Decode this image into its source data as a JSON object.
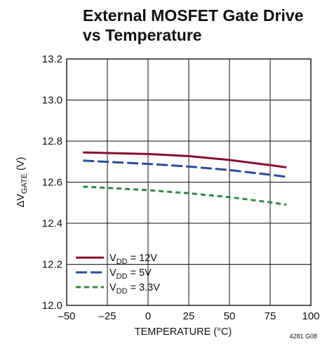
{
  "chart_data": {
    "type": "line",
    "title": [
      "External MOSFET Gate Drive",
      "vs Temperature"
    ],
    "xlabel": "TEMPERATURE (°C)",
    "ylabel": {
      "prefix": "ΔV",
      "sub": "GATE",
      "suffix": " (V)"
    },
    "xlim": [
      -50,
      100
    ],
    "ylim": [
      12.0,
      13.2
    ],
    "xticks": [
      -50,
      -25,
      0,
      25,
      50,
      75,
      100
    ],
    "xtick_labels": [
      "–50",
      "–25",
      "0",
      "25",
      "50",
      "75",
      "100"
    ],
    "yticks": [
      12.0,
      12.2,
      12.4,
      12.6,
      12.8,
      13.0,
      13.2
    ],
    "ytick_labels": [
      "12.0",
      "12.2",
      "12.4",
      "12.6",
      "12.8",
      "13.0",
      "13.2"
    ],
    "grid": true,
    "legend_position": "bottom-left",
    "series": [
      {
        "legend_main": "V",
        "legend_sub": "DD",
        "legend_rest": " = 12V",
        "color": "#8b0d2e",
        "dash": "solid",
        "x": [
          -40,
          -25,
          0,
          25,
          50,
          75,
          85
        ],
        "y": [
          12.745,
          12.742,
          12.737,
          12.727,
          12.708,
          12.683,
          12.672
        ]
      },
      {
        "legend_main": "V",
        "legend_sub": "DD",
        "legend_rest": " = 5V",
        "color": "#2b4b9b",
        "dash": "long",
        "x": [
          -40,
          -25,
          0,
          25,
          50,
          75,
          85
        ],
        "y": [
          12.705,
          12.699,
          12.689,
          12.676,
          12.659,
          12.636,
          12.626
        ]
      },
      {
        "legend_main": "V",
        "legend_sub": "DD",
        "legend_rest": " = 3.3V",
        "color": "#2e8a3e",
        "dash": "short",
        "x": [
          -40,
          -25,
          0,
          25,
          50,
          75,
          85
        ],
        "y": [
          12.578,
          12.572,
          12.561,
          12.546,
          12.527,
          12.502,
          12.49
        ]
      }
    ]
  },
  "figure_id": "4281 G08"
}
